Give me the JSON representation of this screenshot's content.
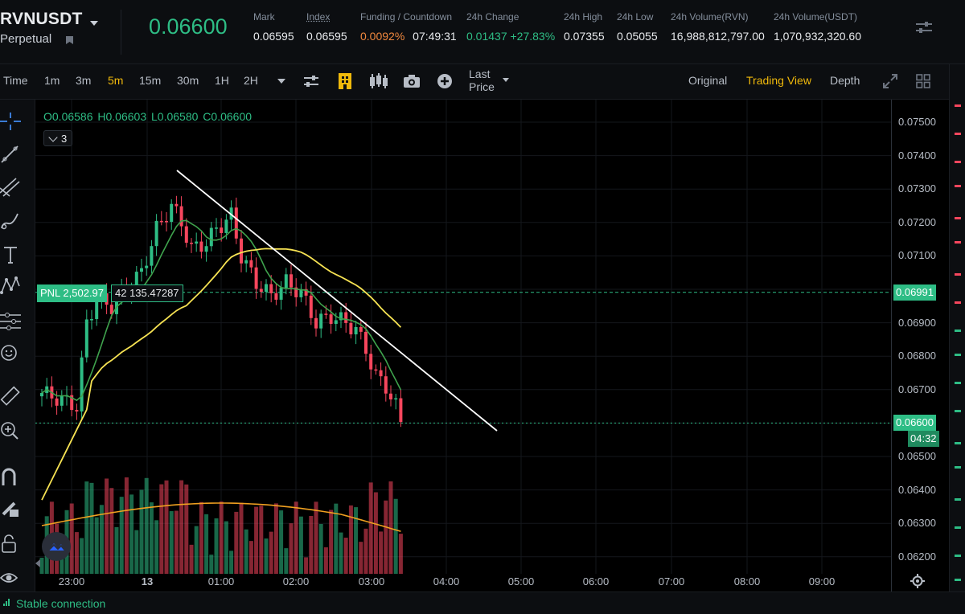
{
  "header": {
    "symbol": "RVNUSDT",
    "contract_type": "Perpetual",
    "last_price": "0.06600",
    "stats": [
      {
        "label": "Mark",
        "value": "0.06595"
      },
      {
        "label": "Index",
        "value": "0.06595"
      },
      {
        "label": "Funding / Countdown",
        "value": "0.0092%",
        "value2": "07:49:31"
      },
      {
        "label": "24h Change",
        "value": "0.01437 +27.83%"
      },
      {
        "label": "24h High",
        "value": "0.07355"
      },
      {
        "label": "24h Low",
        "value": "0.05055"
      },
      {
        "label": "24h Volume(RVN)",
        "value": "16,988,812,797.00"
      },
      {
        "label": "24h Volume(USDT)",
        "value": "1,070,932,320.60"
      }
    ]
  },
  "toolbar": {
    "intervals": [
      "Time",
      "1m",
      "3m",
      "5m",
      "15m",
      "30m",
      "1H",
      "2H"
    ],
    "active_interval": "5m",
    "price_type_line1": "Last",
    "price_type_line2": "Price",
    "views": [
      "Original",
      "Trading View",
      "Depth"
    ],
    "active_view": "Trading View"
  },
  "left_tools": [
    "crosshair-icon",
    "trend-line-icon",
    "fib-icon",
    "brush-icon",
    "text-icon",
    "pattern-icon",
    "prediction-icon",
    "emoji-icon",
    "ruler-icon",
    "zoom-in-icon",
    "magnet-icon",
    "lock-drawing-icon",
    "lock-icon",
    "eye-icon"
  ],
  "chart": {
    "ohlc": {
      "o": "O0.06586",
      "h": "H0.06603",
      "l": "L0.06580",
      "c": "C0.06600"
    },
    "indicator_count": "3",
    "pnl_label": "PNL 2,502.97",
    "position_label": "42 135.47287",
    "colors": {
      "up": "#2ebd85",
      "down": "#f6465d",
      "ma_fast": "#3fa34d",
      "ma_slow": "#f7e353",
      "vol_ma": "#f0a020",
      "trendline": "#ffffff"
    }
  },
  "price_axis": {
    "ticks": [
      "0.07500",
      "0.07400",
      "0.07300",
      "0.07200",
      "0.07100",
      "0.07000",
      "0.06900",
      "0.06800",
      "0.06700",
      "0.06600",
      "0.06500",
      "0.06400",
      "0.06300",
      "0.06200"
    ],
    "position_price_tag": "0.06991",
    "last_price_tag": "0.06600",
    "countdown_tag": "04:32"
  },
  "time_axis": {
    "ticks": [
      "23:00",
      "13",
      "01:00",
      "02:00",
      "03:00",
      "04:00",
      "05:00",
      "06:00",
      "07:00",
      "08:00",
      "09:00"
    ]
  },
  "status": {
    "connection": "Stable connection"
  }
}
